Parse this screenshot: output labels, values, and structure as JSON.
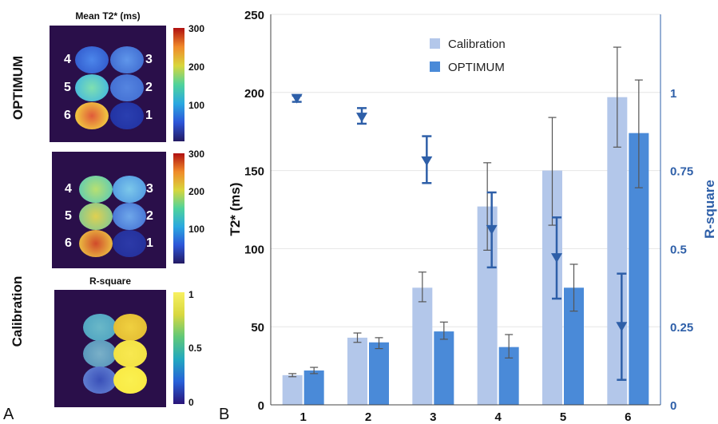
{
  "panel_labels": {
    "a": "A",
    "b": "B"
  },
  "left": {
    "row_label_top": "OPTIMUM",
    "row_label_bottom": "Calibration",
    "map1": {
      "title": "Mean T2* (ms)",
      "cbar_ticks": [
        "300",
        "200",
        "100"
      ],
      "numbers": [
        "4",
        "3",
        "5",
        "2",
        "6",
        "1"
      ]
    },
    "map2": {
      "cbar_ticks": [
        "300",
        "200",
        "100"
      ],
      "numbers": [
        "4",
        "3",
        "5",
        "2",
        "6",
        "1"
      ]
    },
    "map3": {
      "title": "R-square",
      "cbar_ticks": [
        "1",
        "0.5",
        "0"
      ]
    }
  },
  "chart_data": {
    "type": "bar",
    "categories": [
      "1",
      "2",
      "3",
      "4",
      "5",
      "6"
    ],
    "ylabel": "T2* (ms)",
    "ylabel_right": "R-square",
    "ylim": [
      0,
      250
    ],
    "yticks": [
      0,
      50,
      100,
      150,
      200,
      250
    ],
    "ylim_right": [
      0,
      1.25
    ],
    "yticks_right": [
      0,
      0.25,
      0.5,
      0.75,
      1
    ],
    "yticks_right_labels": [
      "0",
      "0.25",
      "0.5",
      "0.75",
      "1"
    ],
    "grid": true,
    "legend_position": "top-center",
    "series": [
      {
        "name": "Calibration",
        "color": "#b3c7ea",
        "values": [
          19,
          43,
          75,
          127,
          150,
          197
        ],
        "err_low": [
          18,
          40,
          66,
          99,
          115,
          165
        ],
        "err_high": [
          20,
          46,
          85,
          155,
          184,
          229
        ]
      },
      {
        "name": "OPTIMUM",
        "color": "#4a8ad8",
        "values": [
          22,
          40,
          47,
          37,
          75,
          174
        ],
        "err_low": [
          20,
          36,
          42,
          30,
          60,
          139
        ],
        "err_high": [
          24,
          43,
          53,
          45,
          90,
          208
        ]
      }
    ],
    "rsquare": {
      "color": "#2e5fa8",
      "values": [
        0.98,
        0.92,
        0.78,
        0.56,
        0.47,
        0.25
      ],
      "err_low": [
        0.97,
        0.9,
        0.71,
        0.44,
        0.34,
        0.08
      ],
      "err_high": [
        0.99,
        0.95,
        0.86,
        0.68,
        0.6,
        0.42
      ]
    }
  }
}
